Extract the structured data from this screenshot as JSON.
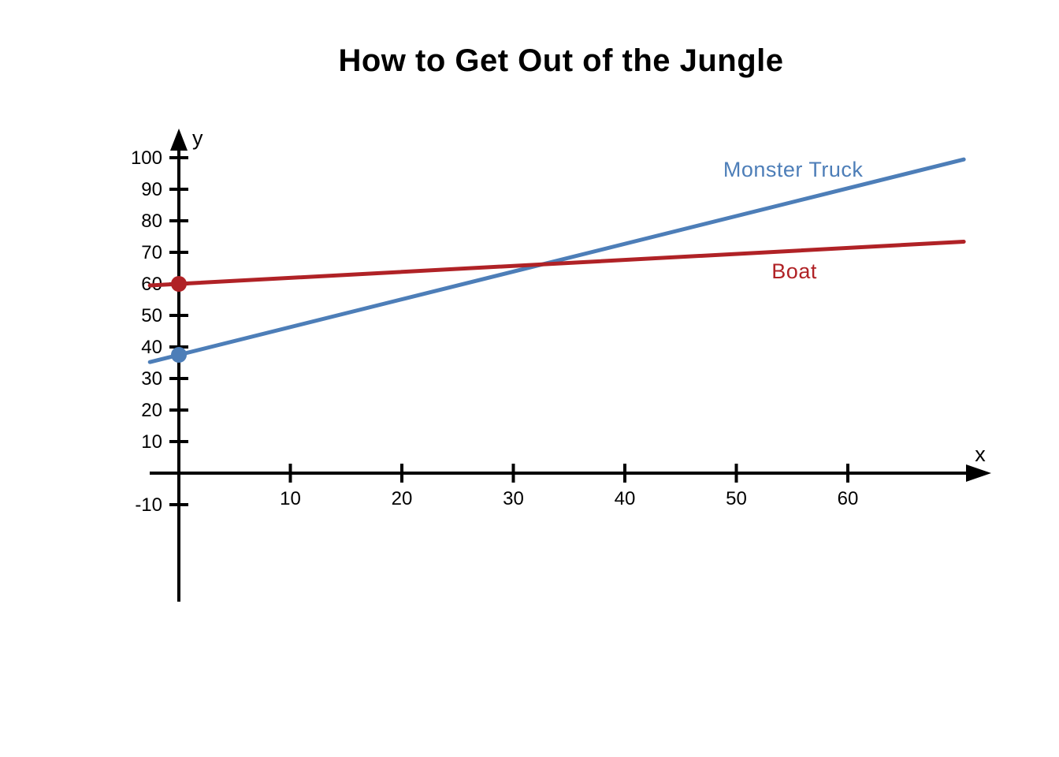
{
  "title": "How to Get Out of the Jungle",
  "colors": {
    "axis": "#000000",
    "background": "#ffffff",
    "title_text": "#000000",
    "monster_truck": "#4d7eb8",
    "boat": "#b02226"
  },
  "chart_data": {
    "type": "line",
    "title": "How to Get Out of the Jungle",
    "xlabel": "x",
    "ylabel": "y",
    "xlim": [
      -3,
      72.5
    ],
    "ylim": [
      -41,
      110
    ],
    "x_ticks": [
      10,
      20,
      30,
      40,
      50,
      60
    ],
    "y_ticks": [
      -10,
      10,
      20,
      30,
      40,
      50,
      60,
      70,
      80,
      90,
      100
    ],
    "grid": false,
    "legend_position": "inline-labels",
    "series": [
      {
        "name": "Monster Truck",
        "color": "#4d7eb8",
        "slope": 0.88,
        "intercept": 37.5,
        "x_start": -2.6,
        "x_end": 70.4,
        "marker_point": {
          "x": 0,
          "y": 37.5
        },
        "label": {
          "text": "Monster Truck",
          "x": 55.1,
          "y": 96.3
        }
      },
      {
        "name": "Boat",
        "color": "#b02226",
        "slope": 0.19,
        "intercept": 60,
        "x_start": -2.6,
        "x_end": 70.4,
        "marker_point": {
          "x": 0,
          "y": 60
        },
        "label": {
          "text": "Boat",
          "x": 55.2,
          "y": 64
        }
      }
    ]
  }
}
